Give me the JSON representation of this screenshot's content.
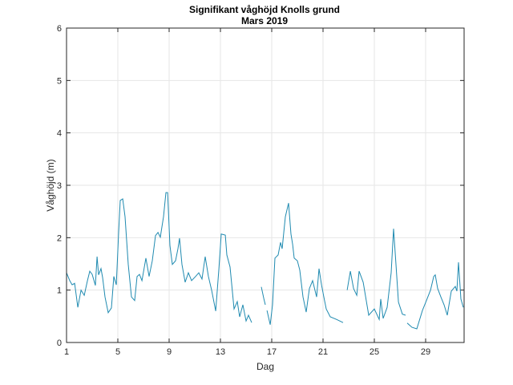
{
  "chart_data": {
    "type": "line",
    "title": "Signifikant våghöjd Knolls grund",
    "subtitle": "Mars 2019",
    "xlabel": "Dag",
    "ylabel": "Våghöjd (m)",
    "xlim": [
      1,
      32
    ],
    "ylim": [
      0,
      6
    ],
    "xticks": [
      1,
      5,
      9,
      13,
      17,
      21,
      25,
      29
    ],
    "yticks": [
      0,
      1,
      2,
      3,
      4,
      5,
      6
    ],
    "grid": true,
    "line_color": "#1f8ab0",
    "series": [
      {
        "x": [
          1.0,
          1.25,
          1.44,
          1.63,
          1.88,
          2.13,
          2.38,
          2.63,
          2.81,
          3.0,
          3.25,
          3.38,
          3.5,
          3.69,
          3.81,
          4.0,
          4.25,
          4.5,
          4.69,
          4.88,
          5.06,
          5.19,
          5.38,
          5.56,
          5.81,
          6.06,
          6.31,
          6.5,
          6.69,
          6.88,
          7.19,
          7.44,
          7.69,
          7.94,
          8.13,
          8.31,
          8.56,
          8.75,
          8.88,
          9.06,
          9.25,
          9.5,
          9.69,
          9.81,
          10.0,
          10.25,
          10.5,
          10.75,
          11.06,
          11.31,
          11.56,
          11.81,
          12.06,
          12.31,
          12.63,
          12.88,
          13.06,
          13.38,
          13.5,
          13.75,
          14.06,
          14.31,
          14.5,
          14.75,
          15.0,
          15.19,
          15.44,
          15.8,
          16.19,
          16.38,
          16.5,
          16.56,
          16.63,
          16.88,
          17.06,
          17.25,
          17.5,
          17.69,
          17.81,
          18.06,
          18.31,
          18.5,
          18.63,
          18.75,
          19.0,
          19.19,
          19.44,
          19.69,
          19.94,
          20.19,
          20.5,
          20.69,
          20.88,
          21.06,
          21.25,
          21.56,
          22.06,
          22.56,
          22.7,
          22.88,
          23.13,
          23.38,
          23.63,
          23.81,
          24.13,
          24.56,
          25.0,
          25.38,
          25.5,
          25.69,
          26.0,
          26.31,
          26.5,
          26.69,
          26.88,
          27.19,
          27.44,
          27.5,
          27.56,
          27.94,
          28.31,
          28.75,
          29.06,
          29.38,
          29.63,
          29.75,
          29.94,
          30.19,
          30.44,
          30.69,
          31.0,
          31.31,
          31.44,
          31.56,
          31.75,
          31.94
        ],
        "y": [
          1.33,
          1.18,
          1.1,
          1.13,
          0.67,
          1.0,
          0.9,
          1.18,
          1.36,
          1.3,
          1.09,
          1.64,
          1.29,
          1.41,
          1.24,
          0.87,
          0.57,
          0.66,
          1.26,
          1.1,
          2.1,
          2.71,
          2.74,
          2.4,
          1.49,
          0.87,
          0.8,
          1.26,
          1.3,
          1.18,
          1.61,
          1.26,
          1.56,
          2.04,
          2.1,
          2.01,
          2.4,
          2.86,
          2.86,
          1.85,
          1.49,
          1.56,
          1.79,
          1.99,
          1.49,
          1.15,
          1.33,
          1.18,
          1.26,
          1.33,
          1.21,
          1.64,
          1.26,
          1.0,
          0.6,
          1.41,
          2.07,
          2.05,
          1.67,
          1.44,
          0.64,
          0.78,
          0.49,
          0.72,
          0.41,
          0.52,
          0.38,
          null,
          1.06,
          0.84,
          0.72,
          null,
          0.61,
          0.34,
          0.72,
          1.61,
          1.67,
          1.91,
          1.79,
          2.4,
          2.66,
          2.07,
          1.87,
          1.61,
          1.56,
          1.38,
          0.87,
          0.58,
          1.03,
          1.18,
          0.87,
          1.41,
          1.1,
          0.87,
          0.64,
          0.49,
          0.44,
          0.38,
          null,
          1.0,
          1.36,
          1.03,
          0.9,
          1.36,
          1.15,
          0.52,
          0.64,
          0.44,
          0.83,
          0.46,
          0.67,
          1.33,
          2.17,
          1.49,
          0.77,
          0.54,
          0.52,
          null,
          0.37,
          0.29,
          0.26,
          0.61,
          0.8,
          1.0,
          1.26,
          1.29,
          1.03,
          0.87,
          0.72,
          0.52,
          0.98,
          1.07,
          0.98,
          1.53,
          0.83,
          0.67
        ]
      }
    ]
  }
}
